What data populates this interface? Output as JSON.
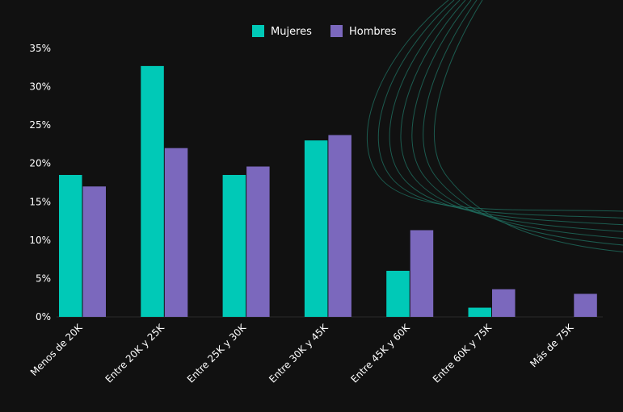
{
  "chart_data": {
    "type": "bar",
    "categories": [
      "Menos de 20K",
      "Entre 20K y 25K",
      "Entre 25K y 30K",
      "Entre 30K y 45K",
      "Entre 45K y 60K",
      "Entre 60K y 75K",
      "Más de 75K"
    ],
    "series": [
      {
        "name": "Mujeres",
        "color": "#00c9b7",
        "values": [
          18.5,
          32.7,
          18.5,
          23.0,
          6.0,
          1.2,
          0
        ]
      },
      {
        "name": "Hombres",
        "color": "#7b68bd",
        "values": [
          17.0,
          22.0,
          19.6,
          23.7,
          11.3,
          3.6,
          3.0
        ]
      }
    ],
    "yticks": [
      "0%",
      "5%",
      "10%",
      "15%",
      "20%",
      "25%",
      "30%",
      "35%"
    ],
    "ylim": [
      0,
      35
    ],
    "grid": false,
    "legend_position": "top-center"
  }
}
